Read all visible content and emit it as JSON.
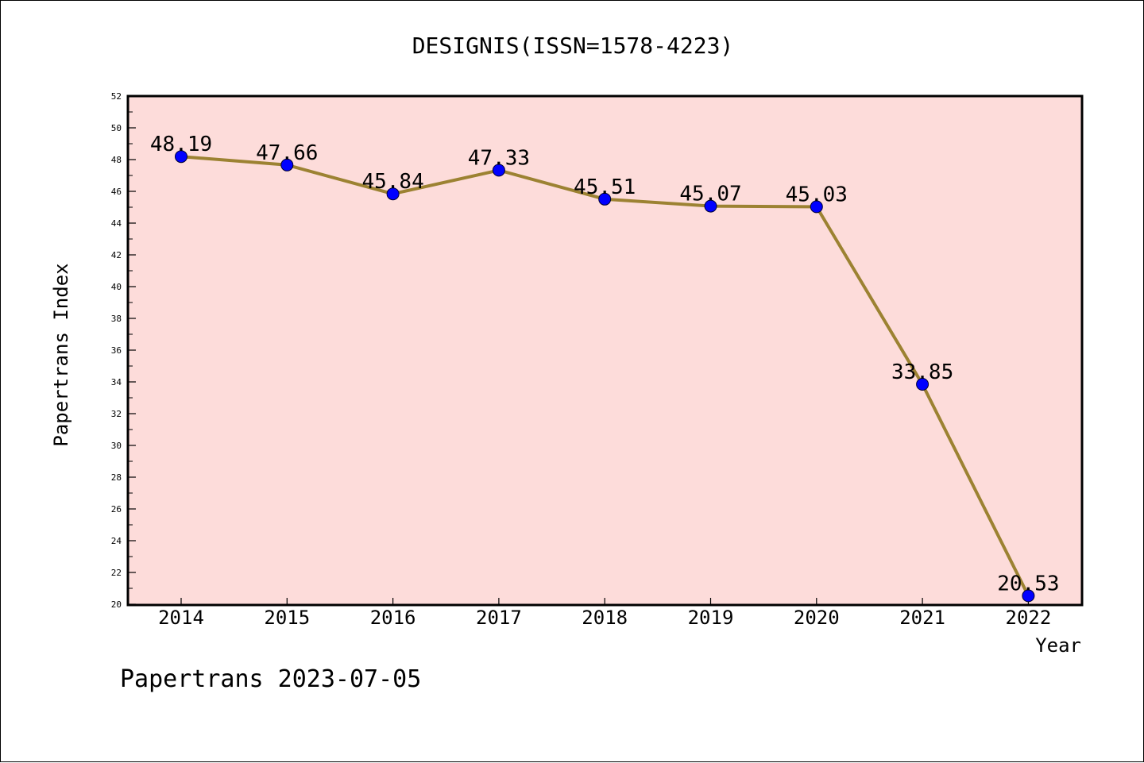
{
  "chart_data": {
    "type": "line",
    "title": "DESIGNIS(ISSN=1578-4223)",
    "xlabel": "Year",
    "ylabel": "Papertrans Index",
    "categories": [
      "2014",
      "2015",
      "2016",
      "2017",
      "2018",
      "2019",
      "2020",
      "2021",
      "2022"
    ],
    "series": [
      {
        "values": [
          48.19,
          47.66,
          45.84,
          47.33,
          45.51,
          45.07,
          45.03,
          33.85,
          20.53
        ],
        "labels": [
          "48.19",
          "47.66",
          "45.84",
          "47.33",
          "45.51",
          "45.07",
          "45.03",
          "33.85",
          "20.53"
        ]
      }
    ],
    "ylim": [
      20,
      52
    ],
    "yticks": [
      "20",
      "22",
      "24",
      "26",
      "28",
      "30",
      "32",
      "34",
      "36",
      "38",
      "40",
      "42",
      "44",
      "46",
      "48",
      "50",
      "52"
    ],
    "grid": false,
    "legend": "none",
    "colors": {
      "plot_background": "#FDDCDA",
      "line": "#9C8232",
      "marker": "#0000FF",
      "axis": "#000000"
    }
  },
  "footer": "Papertrans 2023-07-05"
}
